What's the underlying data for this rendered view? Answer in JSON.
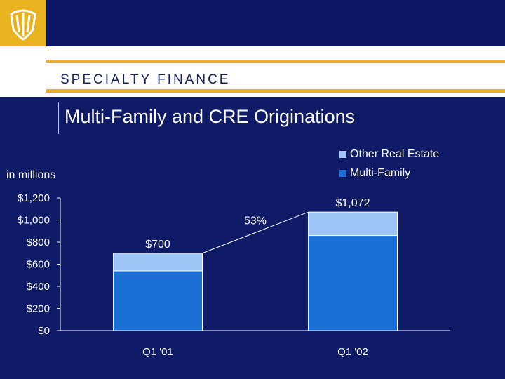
{
  "header": {
    "logo_icon": "shell-crest-logo-icon",
    "section_title": "SPECIALTY FINANCE",
    "slide_title": "Multi-Family and CRE Originations"
  },
  "units_label": "in millions",
  "growth_label": "53%",
  "colors": {
    "background": "#0f1b66",
    "gold": "#e9b320",
    "multi_family": "#1a6fd4",
    "other_real_estate": "#9dc6f7"
  },
  "chart_data": {
    "type": "bar",
    "stacked": true,
    "categories": [
      "Q1 '01",
      "Q1 '02"
    ],
    "series": [
      {
        "name": "Multi-Family",
        "values": [
          540,
          860
        ]
      },
      {
        "name": "Other Real Estate",
        "values": [
          160,
          212
        ]
      }
    ],
    "totals": [
      700,
      1072
    ],
    "total_labels": [
      "$700",
      "$1,072"
    ],
    "ylim": [
      0,
      1200
    ],
    "yticks": [
      0,
      200,
      400,
      600,
      800,
      1000,
      1200
    ],
    "ytick_labels": [
      "$0",
      "$200",
      "$400",
      "$600",
      "$800",
      "$1,000",
      "$1,200"
    ],
    "ylabel": "in millions",
    "legend": [
      "Other Real Estate",
      "Multi-Family"
    ],
    "legend_position": "top-right",
    "grid": false
  }
}
